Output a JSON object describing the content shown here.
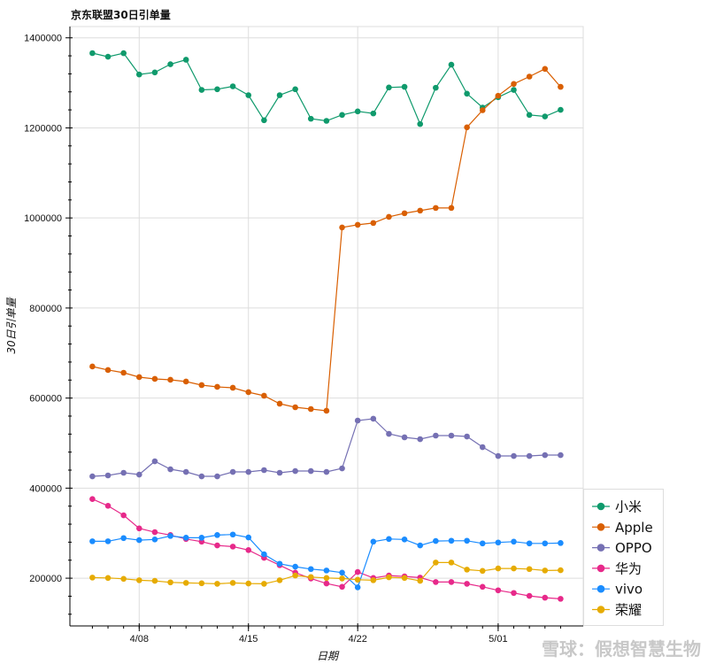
{
  "chart_data": {
    "type": "line",
    "title": "京东联盟30日引单量",
    "xlabel": "日期",
    "ylabel": "30日引单量",
    "ylim": [
      94000,
      1425000
    ],
    "yticks": [
      200000,
      400000,
      600000,
      800000,
      1000000,
      1200000,
      1400000
    ],
    "ytick_labels": [
      "200000",
      "400000",
      "600000",
      "800000",
      "1000000",
      "1200000",
      "1400000"
    ],
    "xtick_labels": [
      "4/08",
      "4/15",
      "4/22",
      "5/01"
    ],
    "grid": true,
    "legend_position": "bottom-right",
    "x": [
      "4/05",
      "4/06",
      "4/07",
      "4/08",
      "4/09",
      "4/10",
      "4/11",
      "4/12",
      "4/13",
      "4/14",
      "4/15",
      "4/16",
      "4/17",
      "4/18",
      "4/19",
      "4/20",
      "4/21",
      "4/22",
      "4/23",
      "4/24",
      "4/25",
      "4/26",
      "4/27",
      "4/28",
      "4/29",
      "4/30",
      "5/01",
      "5/02",
      "5/03",
      "5/04",
      "5/05"
    ],
    "series": [
      {
        "name": "小米",
        "color": "#0f9a6c",
        "values": [
          1366000,
          1358000,
          1365800,
          1318600,
          1323200,
          1341400,
          1351300,
          1284400,
          1285800,
          1292300,
          1272600,
          1216900,
          1272600,
          1285800,
          1220300,
          1215600,
          1228700,
          1236600,
          1232100,
          1289700,
          1291100,
          1208500,
          1289100,
          1340300,
          1275900,
          1245100,
          1268100,
          1284400,
          1228700,
          1225400,
          1240000
        ]
      },
      {
        "name": "Apple",
        "color": "#d95f02",
        "values": [
          670100,
          662300,
          656300,
          646500,
          642600,
          640600,
          636700,
          628800,
          624900,
          622900,
          613100,
          605200,
          587500,
          579600,
          575700,
          571800,
          978900,
          984800,
          988800,
          1002500,
          1010400,
          1016300,
          1022200,
          1022200,
          1201200,
          1239200,
          1271400,
          1297600,
          1313900,
          1331000,
          1291100
        ]
      },
      {
        "name": "OPPO",
        "color": "#7570b3",
        "values": [
          426200,
          428200,
          434100,
          430100,
          459600,
          441900,
          436000,
          426200,
          426200,
          436000,
          436000,
          440000,
          434100,
          438000,
          438000,
          436000,
          443900,
          550100,
          554100,
          520600,
          512800,
          508800,
          516700,
          516700,
          514700,
          491100,
          471400,
          471400,
          471400,
          473400,
          473400
        ]
      },
      {
        "name": "华为",
        "color": "#e7298a",
        "values": [
          375700,
          360700,
          339700,
          310700,
          302300,
          295800,
          287100,
          281200,
          272800,
          270200,
          262400,
          245200,
          228900,
          212400,
          199400,
          188200,
          180900,
          213800,
          200600,
          205900,
          203900,
          201400,
          191500,
          191500,
          187600,
          180900,
          173100,
          167200,
          160700,
          156700,
          154200
        ]
      },
      {
        "name": "vivo",
        "color": "#1a8cff",
        "values": [
          282000,
          282000,
          289100,
          284600,
          286000,
          293800,
          289900,
          289900,
          295800,
          297000,
          290500,
          253100,
          232100,
          225600,
          220300,
          217100,
          212400,
          179700,
          281200,
          287100,
          286000,
          272800,
          282600,
          283200,
          283200,
          277300,
          279300,
          281200,
          277300,
          277300,
          278100
        ]
      },
      {
        "name": "荣耀",
        "color": "#e6ab02",
        "values": [
          201400,
          200600,
          198600,
          195500,
          194100,
          190800,
          189600,
          188800,
          187600,
          189600,
          188200,
          187600,
          195500,
          205900,
          202600,
          200600,
          199400,
          196700,
          195500,
          202000,
          200600,
          194100,
          234800,
          234800,
          219100,
          216300,
          221600,
          221600,
          220300,
          217100,
          217700
        ]
      }
    ]
  },
  "watermark": "雪球：假想智慧生物"
}
